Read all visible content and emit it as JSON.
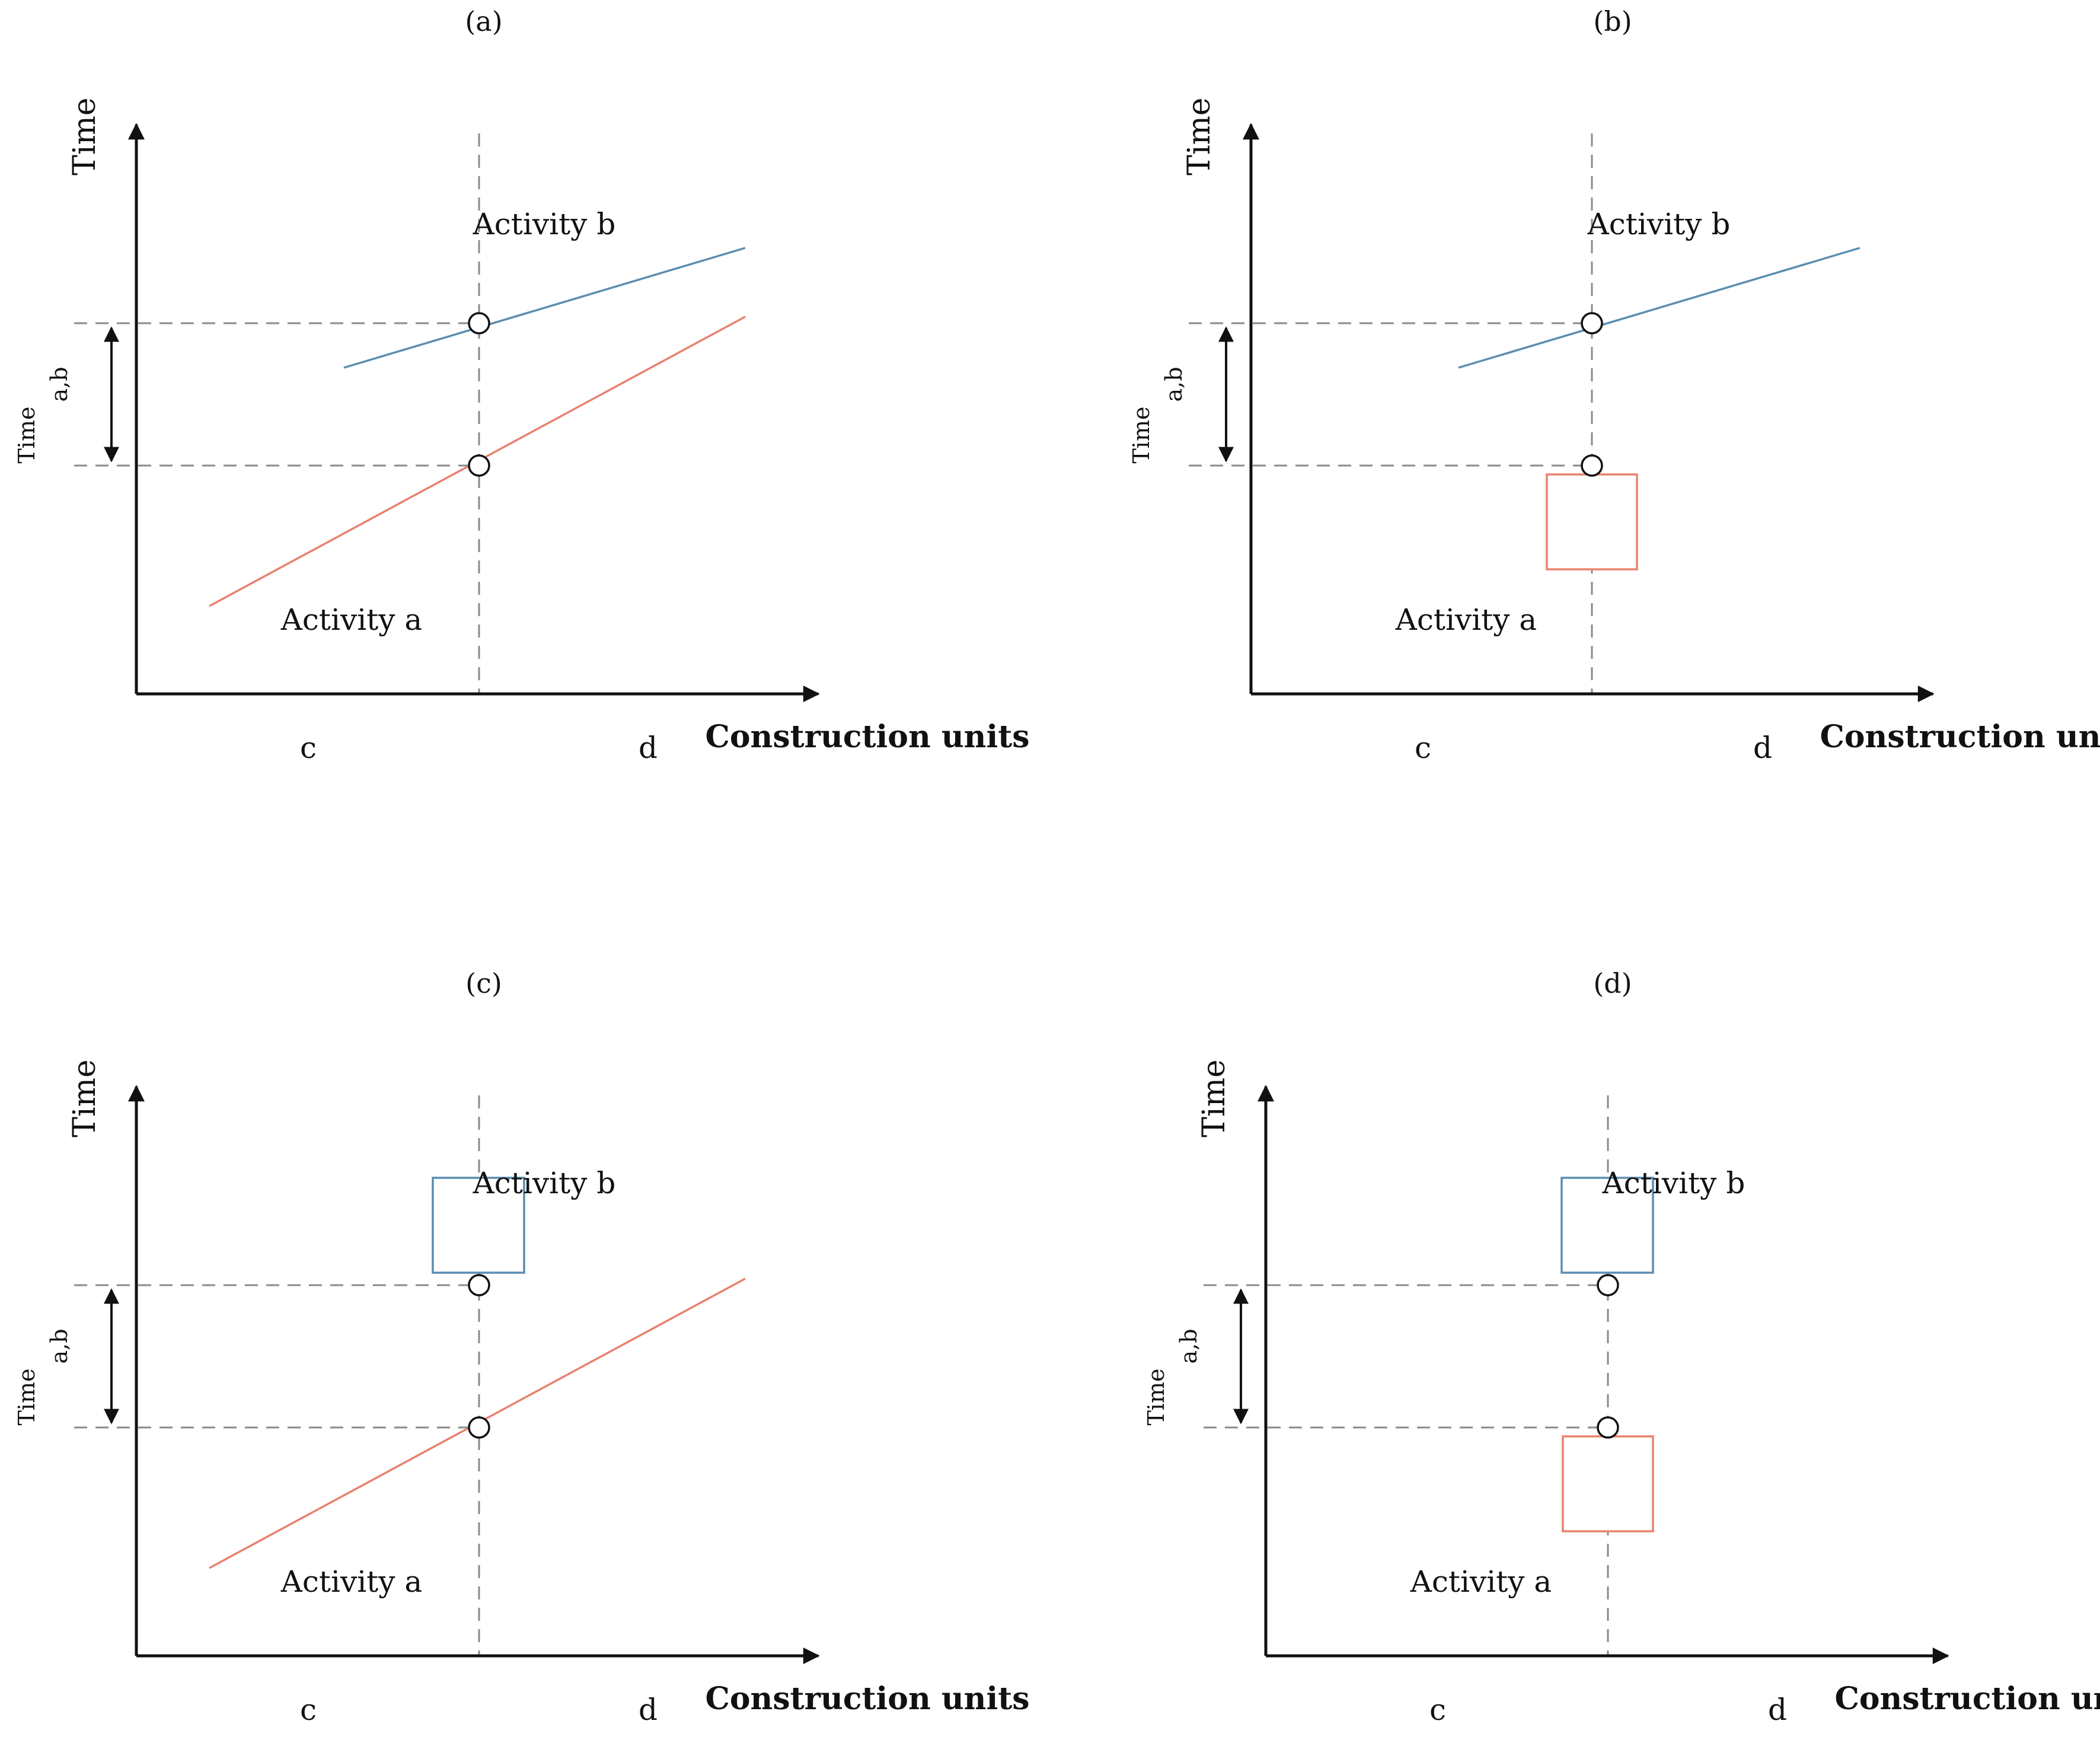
{
  "figure": {
    "panels": [
      {
        "id": "a",
        "label": "(a)",
        "y_axis_label": "Time",
        "x_axis_label": "Construction units",
        "unit_c": "c",
        "unit_d": "d",
        "gap_label_main": "Time",
        "gap_label_sub": "a,b",
        "activity_a": {
          "label": "Activity a",
          "representation": "line"
        },
        "activity_b": {
          "label": "Activity b",
          "representation": "line"
        }
      },
      {
        "id": "b",
        "label": "(b)",
        "y_axis_label": "Time",
        "x_axis_label": "Construction units",
        "unit_c": "c",
        "unit_d": "d",
        "gap_label_main": "Time",
        "gap_label_sub": "a,b",
        "activity_a": {
          "label": "Activity a",
          "representation": "block"
        },
        "activity_b": {
          "label": "Activity b",
          "representation": "line"
        }
      },
      {
        "id": "c",
        "label": "(c)",
        "y_axis_label": "Time",
        "x_axis_label": "Construction units",
        "unit_c": "c",
        "unit_d": "d",
        "gap_label_main": "Time",
        "gap_label_sub": "a,b",
        "activity_a": {
          "label": "Activity a",
          "representation": "line"
        },
        "activity_b": {
          "label": "Activity b",
          "representation": "block"
        }
      },
      {
        "id": "d",
        "label": "(d)",
        "y_axis_label": "Time",
        "x_axis_label": "Construction units",
        "unit_c": "c",
        "unit_d": "d",
        "gap_label_main": "Time",
        "gap_label_sub": "a,b",
        "activity_a": {
          "label": "Activity a",
          "representation": "block"
        },
        "activity_b": {
          "label": "Activity b",
          "representation": "block"
        }
      }
    ],
    "colors": {
      "activity_a": "#e8826f",
      "activity_b": "#5b8db0",
      "axis": "#111111",
      "guide": "#8a8a8a"
    }
  }
}
